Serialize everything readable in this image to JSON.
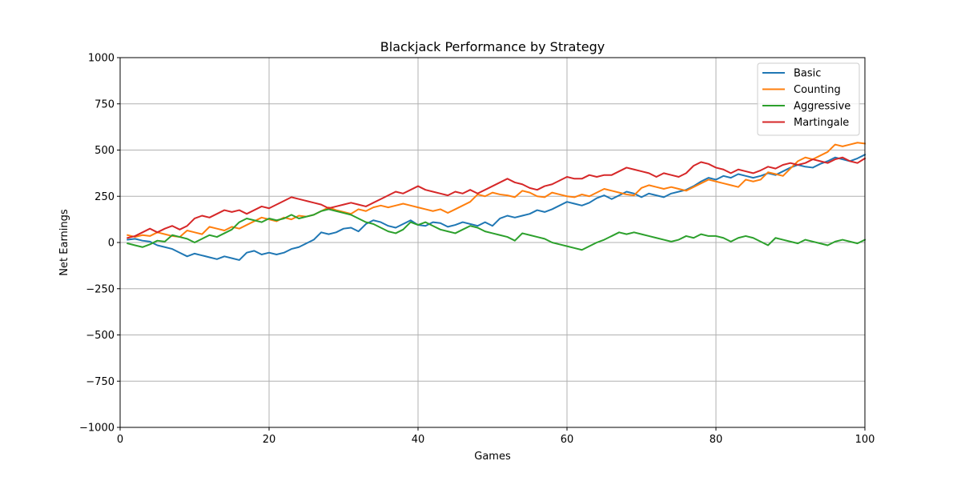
{
  "chart_data": {
    "type": "line",
    "title": "Blackjack Performance by Strategy",
    "xlabel": "Games",
    "ylabel": "Net Earnings",
    "xlim": [
      0,
      100
    ],
    "ylim": [
      -1000,
      1000
    ],
    "xticks": [
      0,
      20,
      40,
      60,
      80,
      100
    ],
    "yticks": [
      -1000,
      -750,
      -500,
      -250,
      0,
      250,
      500,
      750,
      1000
    ],
    "grid": true,
    "legend_position": "top-right",
    "x": [
      1,
      2,
      3,
      4,
      5,
      6,
      7,
      8,
      9,
      10,
      11,
      12,
      13,
      14,
      15,
      16,
      17,
      18,
      19,
      20,
      21,
      22,
      23,
      24,
      25,
      26,
      27,
      28,
      29,
      30,
      31,
      32,
      33,
      34,
      35,
      36,
      37,
      38,
      39,
      40,
      41,
      42,
      43,
      44,
      45,
      46,
      47,
      48,
      49,
      50,
      51,
      52,
      53,
      54,
      55,
      56,
      57,
      58,
      59,
      60,
      61,
      62,
      63,
      64,
      65,
      66,
      67,
      68,
      69,
      70,
      71,
      72,
      73,
      74,
      75,
      76,
      77,
      78,
      79,
      80,
      81,
      82,
      83,
      84,
      85,
      86,
      87,
      88,
      89,
      90,
      91,
      92,
      93,
      94,
      95,
      96,
      97,
      98,
      99,
      100
    ],
    "series": [
      {
        "name": "Basic",
        "color": "#1f77b4",
        "values": [
          15,
          20,
          10,
          5,
          -15,
          -25,
          -35,
          -55,
          -75,
          -60,
          -70,
          -80,
          -90,
          -75,
          -85,
          -95,
          -55,
          -45,
          -65,
          -55,
          -65,
          -55,
          -35,
          -25,
          -5,
          15,
          55,
          45,
          55,
          75,
          80,
          60,
          100,
          120,
          110,
          90,
          80,
          100,
          120,
          95,
          90,
          110,
          105,
          85,
          95,
          110,
          100,
          90,
          110,
          90,
          130,
          145,
          135,
          145,
          155,
          175,
          165,
          180,
          200,
          220,
          210,
          200,
          215,
          240,
          255,
          235,
          255,
          275,
          265,
          245,
          265,
          255,
          245,
          265,
          275,
          285,
          305,
          330,
          350,
          340,
          360,
          350,
          370,
          360,
          350,
          360,
          375,
          365,
          385,
          405,
          420,
          410,
          405,
          425,
          440,
          460,
          450,
          440,
          455,
          475
        ]
      },
      {
        "name": "Counting",
        "color": "#ff7f0e",
        "values": [
          40,
          30,
          40,
          35,
          55,
          45,
          35,
          30,
          65,
          55,
          45,
          85,
          75,
          65,
          85,
          75,
          95,
          115,
          135,
          125,
          115,
          135,
          125,
          145,
          140,
          150,
          170,
          190,
          175,
          165,
          155,
          180,
          170,
          190,
          200,
          190,
          200,
          210,
          200,
          190,
          180,
          170,
          180,
          160,
          180,
          200,
          220,
          260,
          250,
          270,
          260,
          255,
          245,
          280,
          270,
          250,
          245,
          270,
          260,
          250,
          245,
          260,
          250,
          270,
          290,
          280,
          270,
          260,
          255,
          295,
          310,
          300,
          290,
          300,
          290,
          280,
          300,
          320,
          340,
          330,
          320,
          310,
          300,
          340,
          330,
          340,
          380,
          370,
          360,
          400,
          440,
          460,
          450,
          470,
          490,
          530,
          520,
          530,
          540,
          535
        ]
      },
      {
        "name": "Aggressive",
        "color": "#2ca02c",
        "values": [
          -5,
          -15,
          -25,
          -10,
          10,
          5,
          40,
          30,
          20,
          0,
          20,
          40,
          30,
          50,
          70,
          110,
          130,
          120,
          110,
          130,
          120,
          130,
          150,
          130,
          140,
          150,
          170,
          180,
          170,
          160,
          150,
          130,
          110,
          100,
          80,
          60,
          50,
          70,
          110,
          95,
          110,
          90,
          70,
          60,
          50,
          70,
          90,
          80,
          60,
          50,
          40,
          30,
          10,
          50,
          40,
          30,
          20,
          0,
          -10,
          -20,
          -30,
          -40,
          -20,
          0,
          15,
          35,
          55,
          45,
          55,
          45,
          35,
          25,
          15,
          5,
          15,
          35,
          25,
          45,
          35,
          35,
          25,
          5,
          25,
          35,
          25,
          5,
          -15,
          25,
          15,
          5,
          -5,
          15,
          5,
          -5,
          -15,
          5,
          15,
          5,
          -5,
          15
        ]
      },
      {
        "name": "Martingale",
        "color": "#d62728",
        "values": [
          25,
          35,
          55,
          75,
          55,
          75,
          90,
          70,
          90,
          130,
          145,
          135,
          155,
          175,
          165,
          175,
          155,
          175,
          195,
          185,
          205,
          225,
          245,
          235,
          225,
          215,
          205,
          185,
          195,
          205,
          215,
          205,
          195,
          215,
          235,
          255,
          275,
          265,
          285,
          305,
          285,
          275,
          265,
          255,
          275,
          265,
          285,
          265,
          285,
          305,
          325,
          345,
          325,
          315,
          295,
          285,
          305,
          315,
          335,
          355,
          345,
          345,
          365,
          355,
          365,
          365,
          385,
          405,
          395,
          385,
          375,
          355,
          375,
          365,
          355,
          375,
          415,
          435,
          425,
          405,
          395,
          375,
          395,
          385,
          375,
          390,
          410,
          400,
          420,
          430,
          420,
          430,
          450,
          440,
          430,
          450,
          460,
          440,
          430,
          455
        ]
      }
    ]
  }
}
